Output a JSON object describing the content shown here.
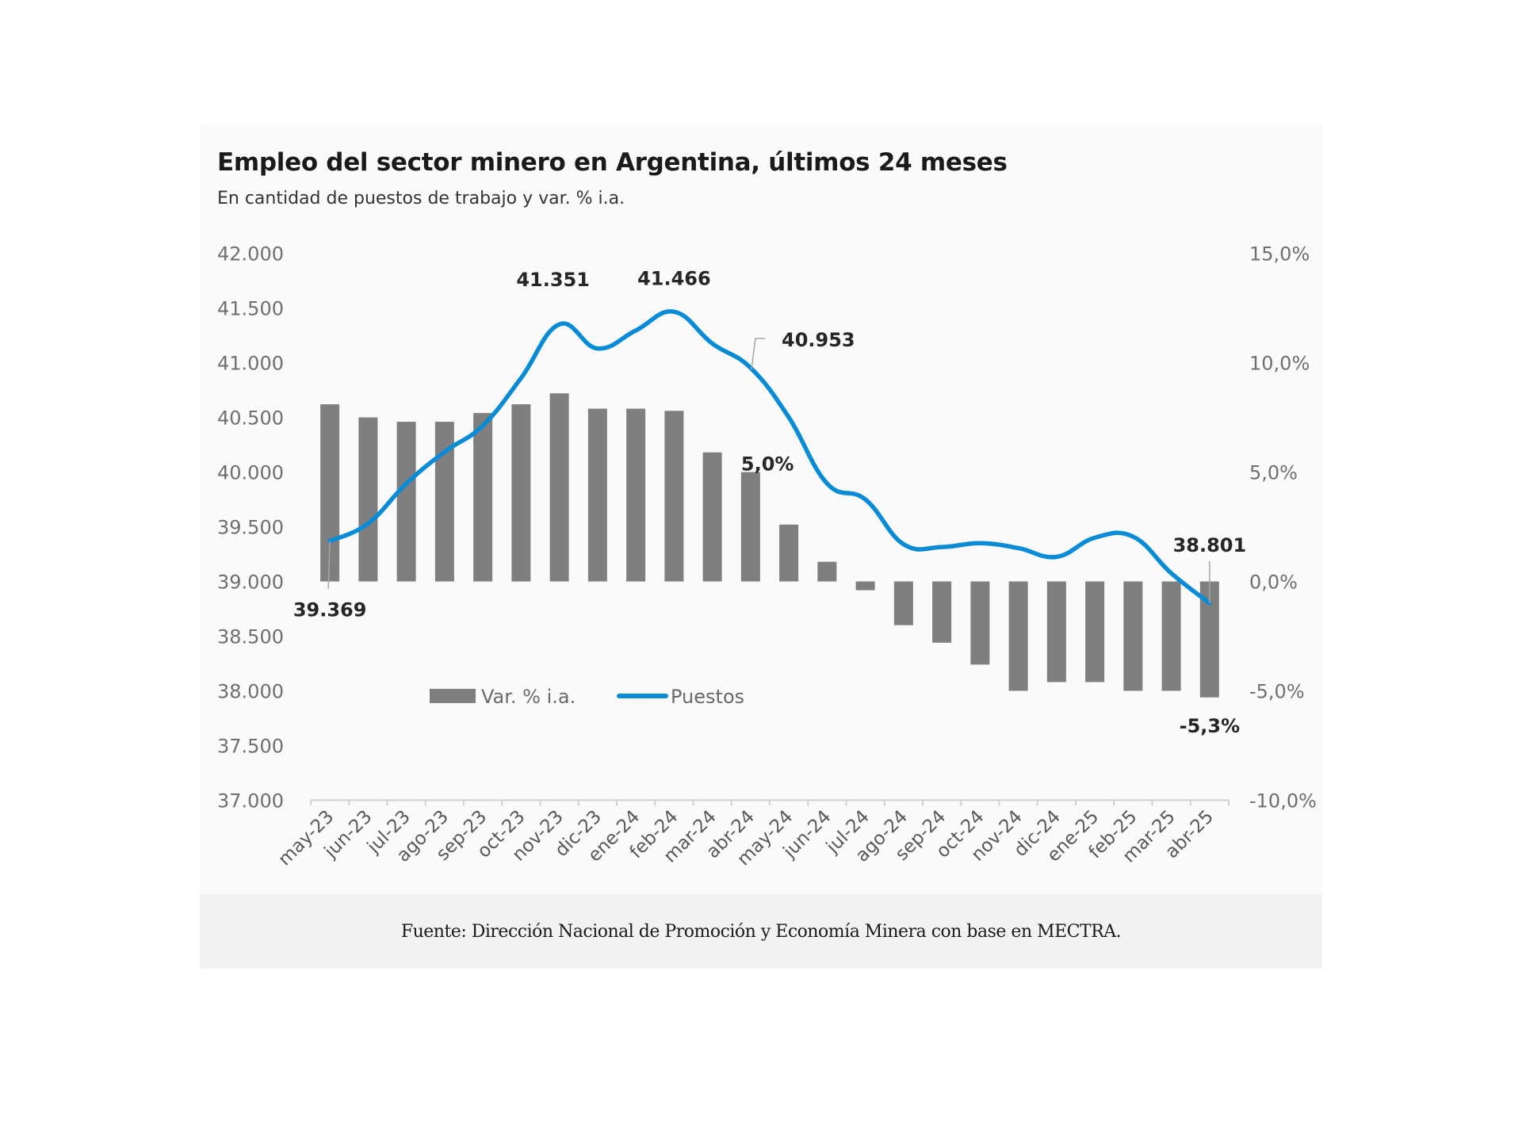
{
  "chart_data": {
    "type": "bar+line",
    "title": "Empleo del sector minero en Argentina, últimos 24 meses",
    "subtitle": "En cantidad de puestos de trabajo y var. % i.a.",
    "source": "Fuente: Dirección Nacional de Promoción y Economía Minera con base en MECTRA.",
    "categories": [
      "may-23",
      "jun-23",
      "jul-23",
      "ago-23",
      "sep-23",
      "oct-23",
      "nov-23",
      "dic-23",
      "ene-24",
      "feb-24",
      "mar-24",
      "abr-24",
      "may-24",
      "jun-24",
      "jul-24",
      "ago-24",
      "sep-24",
      "oct-24",
      "nov-24",
      "dic-24",
      "ene-25",
      "feb-25",
      "mar-25",
      "abr-25"
    ],
    "series": [
      {
        "name": "Var. % i.a.",
        "type": "bar",
        "axis": "right",
        "color": "#7f7f7f",
        "values": [
          8.1,
          7.5,
          7.3,
          7.3,
          7.7,
          8.1,
          8.6,
          7.9,
          7.9,
          7.8,
          5.9,
          5.0,
          2.6,
          0.9,
          -0.4,
          -2.0,
          -2.8,
          -3.8,
          -5.0,
          -4.6,
          -4.6,
          -5.0,
          -5.0,
          -5.3
        ],
        "labels": [
          {
            "index": 11,
            "text": "5,0%"
          },
          {
            "index": 23,
            "text": "-5,3%"
          }
        ]
      },
      {
        "name": "Puestos",
        "type": "line",
        "axis": "left",
        "color": "#0a8bd6",
        "values": [
          39369,
          39530,
          39895,
          40185,
          40425,
          40860,
          41351,
          41130,
          41295,
          41466,
          41175,
          40953,
          40500,
          39895,
          39750,
          39340,
          39315,
          39350,
          39305,
          39225,
          39400,
          39410,
          39075,
          38801
        ],
        "labels": [
          {
            "index": 0,
            "text": "39.369"
          },
          {
            "index": 6,
            "text": "41.351"
          },
          {
            "index": 9,
            "text": "41.466"
          },
          {
            "index": 11,
            "text": "40.953"
          },
          {
            "index": 23,
            "text": "38.801"
          }
        ]
      }
    ],
    "y_left": {
      "min": 37000,
      "max": 42000,
      "step": 500,
      "ticks": [
        "42.000",
        "41.500",
        "41.000",
        "40.500",
        "40.000",
        "39.500",
        "39.000",
        "38.500",
        "38.000",
        "37.500",
        "37.000"
      ]
    },
    "y_right": {
      "min": -10,
      "max": 15,
      "step": 5,
      "ticks": [
        "15,0%",
        "10,0%",
        "5,0%",
        "0,0%",
        "-5,0%",
        "-10,0%"
      ]
    },
    "legend": {
      "placement": "bottom-left-inside",
      "items": [
        "Var. % i.a.",
        "Puestos"
      ]
    },
    "grid": false
  }
}
